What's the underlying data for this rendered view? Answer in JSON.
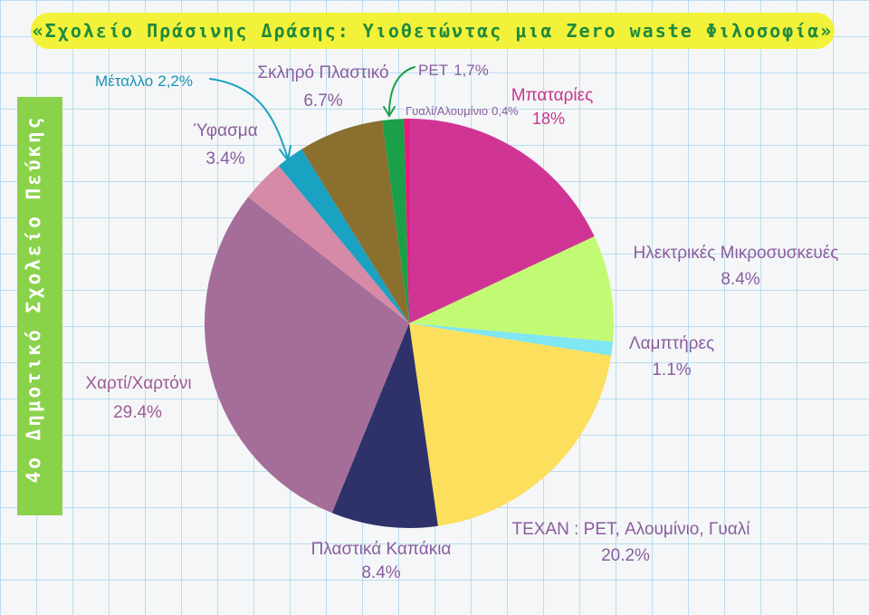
{
  "header": {
    "title": "«Σχολείο Πράσινης Δράσης: Υιοθετώντας μια Zero waste Φιλοσοφία»"
  },
  "sidebar": {
    "label": "4ο Δημοτικό Σχολείο Πεύκης"
  },
  "chart_data": {
    "type": "pie",
    "title": "«Σχολείο Πράσινης Δράσης: Υιοθετώντας μια Zero waste Φιλοσοφία»",
    "slices": [
      {
        "name": "Μπαταρίες",
        "value": 18,
        "value_label": "18%",
        "color": "#d03595"
      },
      {
        "name": "Ηλεκτρικές Μικροσυσκευές",
        "value": 8.4,
        "value_label": "8.4%",
        "color": "#c2fb73"
      },
      {
        "name": "Λαμπτήρες",
        "value": 1.1,
        "value_label": "1.1%",
        "color": "#7fe6f2"
      },
      {
        "name": "ΤΕΧΑΝ : PET, Αλουμίνιο, Γυαλί",
        "value": 20.2,
        "value_label": "20.2%",
        "color": "#fcdf5d"
      },
      {
        "name": "Πλαστικά Καπάκια",
        "value": 8.4,
        "value_label": "8.4%",
        "color": "#2e316a"
      },
      {
        "name": "Χαρτί/Χαρτόνι",
        "value": 29.4,
        "value_label": "29.4%",
        "color": "#a46e98"
      },
      {
        "name": "Ύφασμα",
        "value": 3.4,
        "value_label": "3.4%",
        "color": "#d789a8"
      },
      {
        "name": "Μέταλλο",
        "value": 2.2,
        "value_label": "2,2%",
        "color": "#1aa2c2"
      },
      {
        "name": "Σκληρό Πλαστικό",
        "value": 6.7,
        "value_label": "6.7%",
        "color": "#8a6f2e"
      },
      {
        "name": "PET",
        "value": 1.7,
        "value_label": "1,7%",
        "color": "#1ba04a"
      },
      {
        "name": "Γυαλί/Αλουμίνιο",
        "value": 0.4,
        "value_label": "0,4%",
        "color": "#e8197d"
      }
    ]
  }
}
